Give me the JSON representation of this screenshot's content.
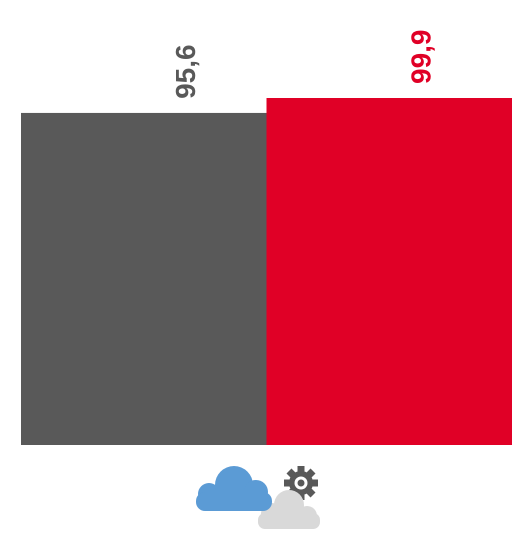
{
  "chart_data": {
    "type": "bar",
    "categories": [
      "",
      ""
    ],
    "values": [
      95.6,
      99.9
    ],
    "value_labels": [
      "95,6",
      "99,9"
    ],
    "colors": [
      "#595959",
      "#e00026"
    ],
    "label_colors": [
      "#595959",
      "#e00026"
    ],
    "ylim": [
      0,
      99.9
    ],
    "title": "",
    "xlabel": "",
    "ylabel": "",
    "grid": false,
    "legend": "none"
  },
  "icon": {
    "name": "cloud-gear-icon",
    "colors": {
      "cloud_front": "#5b9bd5",
      "cloud_back": "#d9d9d9",
      "gear": "#595959"
    }
  }
}
